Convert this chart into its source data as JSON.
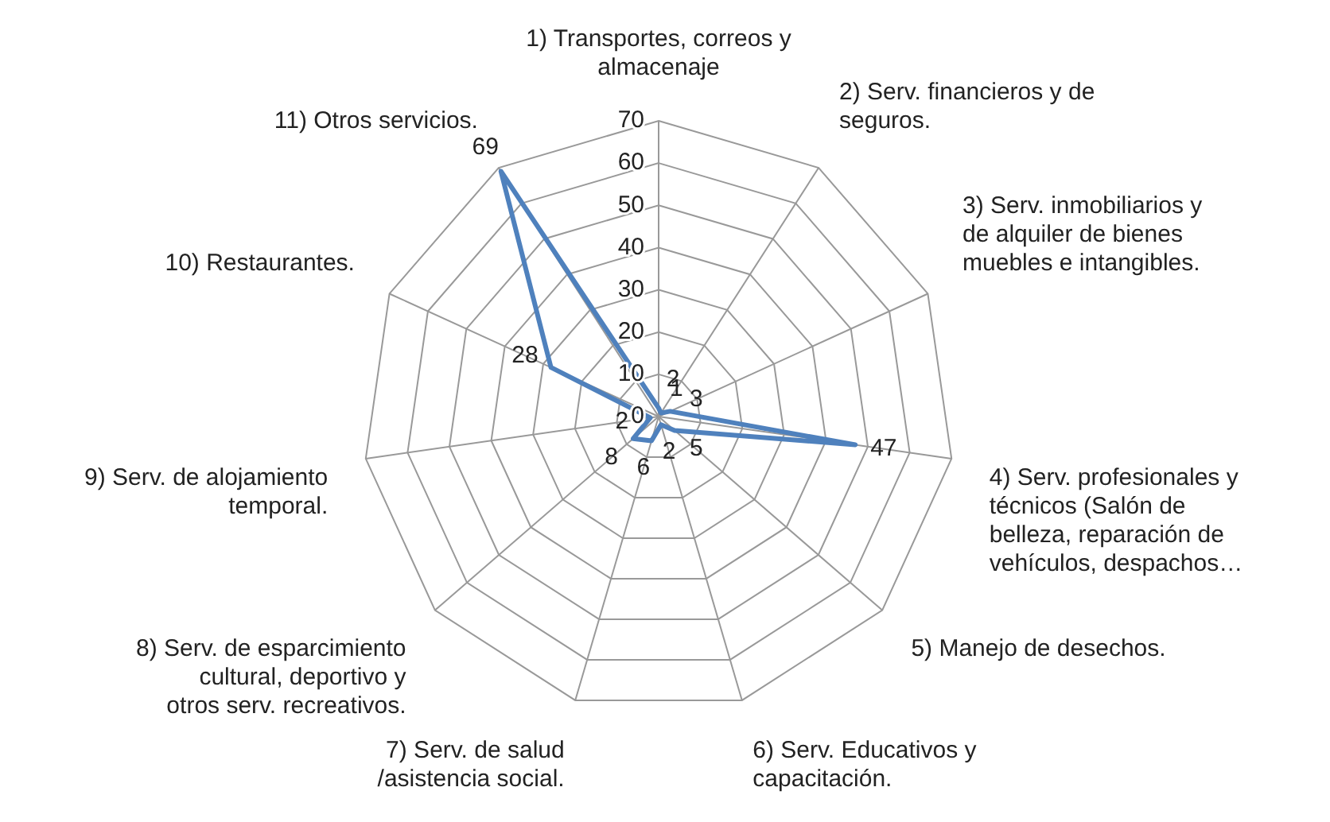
{
  "chart_data": {
    "type": "radar",
    "categories": [
      "1) Transportes, correos y almacenaje",
      "2) Serv. financieros y de seguros.",
      "3) Serv. inmobiliarios y de alquiler de bienes muebles e intangibles.",
      "4) Serv. profesionales y técnicos (Salón de belleza, reparación de vehículos, despachos…",
      "5) Manejo de desechos.",
      "6) Serv. Educativos y capacitación.",
      "7) Serv. de salud /asistencia social.",
      "8) Serv. de esparcimiento cultural, deportivo y otros serv. recreativos.",
      "9) Serv. de alojamiento temporal.",
      "10) Restaurantes.",
      "11) Otros servicios."
    ],
    "series": [
      {
        "color": "#4f81bd",
        "values": [
          2,
          1,
          3,
          47,
          5,
          2,
          6,
          8,
          2,
          28,
          69
        ]
      }
    ],
    "ylim": [
      0,
      70
    ],
    "yticks": [
      0,
      10,
      20,
      30,
      40,
      50,
      60,
      70
    ],
    "grid": true,
    "legend": false,
    "marker": "none",
    "data_labels": true
  }
}
